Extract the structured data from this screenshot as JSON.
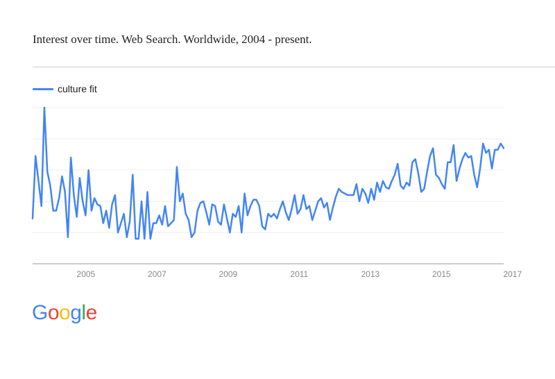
{
  "title": "Interest over time. Web Search. Worldwide, 2004 - present.",
  "colors": {
    "series": "#4285f4",
    "grid": "#eeeeee",
    "axis": "#999999",
    "tick_text": "#888888"
  },
  "logo": {
    "text": "Google",
    "letters": [
      {
        "ch": "G",
        "color": "#4285f4"
      },
      {
        "ch": "o",
        "color": "#ea4335"
      },
      {
        "ch": "o",
        "color": "#fbbc05"
      },
      {
        "ch": "g",
        "color": "#4285f4"
      },
      {
        "ch": "l",
        "color": "#34a853"
      },
      {
        "ch": "e",
        "color": "#ea4335"
      }
    ]
  },
  "chart_data": {
    "type": "line",
    "title": "Interest over time. Web Search. Worldwide, 2004 - present.",
    "xlabel": "",
    "ylabel": "",
    "x_start": "2004-01",
    "x_end": "2017-04",
    "x_ticks": [
      "2005",
      "2007",
      "2009",
      "2011",
      "2013",
      "2015",
      "2017"
    ],
    "ylim": [
      0,
      100
    ],
    "grid": true,
    "legend_position": "top-left",
    "series": [
      {
        "name": "culture fit",
        "color": "#4285f4",
        "values": [
          29,
          69,
          53,
          37,
          100,
          59,
          50,
          34,
          34,
          42,
          56,
          46,
          17,
          68,
          44,
          30,
          55,
          40,
          31,
          60,
          34,
          42,
          38,
          37,
          26,
          34,
          23,
          38,
          44,
          20,
          26,
          32,
          17,
          27,
          57,
          16,
          16,
          40,
          16,
          46,
          16,
          26,
          26,
          31,
          25,
          37,
          24,
          26,
          28,
          62,
          40,
          45,
          32,
          28,
          17,
          20,
          34,
          39,
          40,
          33,
          25,
          38,
          37,
          27,
          25,
          38,
          29,
          20,
          32,
          30,
          37,
          20,
          45,
          31,
          37,
          41,
          41,
          37,
          24,
          22,
          32,
          30,
          32,
          29,
          35,
          40,
          33,
          28,
          35,
          44,
          32,
          35,
          44,
          35,
          37,
          28,
          34,
          40,
          42,
          36,
          39,
          28,
          36,
          43,
          48,
          46,
          45,
          44,
          44,
          44,
          51,
          40,
          48,
          45,
          39,
          48,
          41,
          52,
          46,
          53,
          49,
          48,
          53,
          57,
          64,
          50,
          48,
          52,
          50,
          65,
          67,
          58,
          46,
          48,
          59,
          69,
          74,
          57,
          55,
          51,
          48,
          65,
          65,
          76,
          53,
          61,
          67,
          71,
          68,
          69,
          57,
          49,
          61,
          77,
          71,
          73,
          61,
          73,
          73,
          77,
          74
        ]
      }
    ]
  }
}
